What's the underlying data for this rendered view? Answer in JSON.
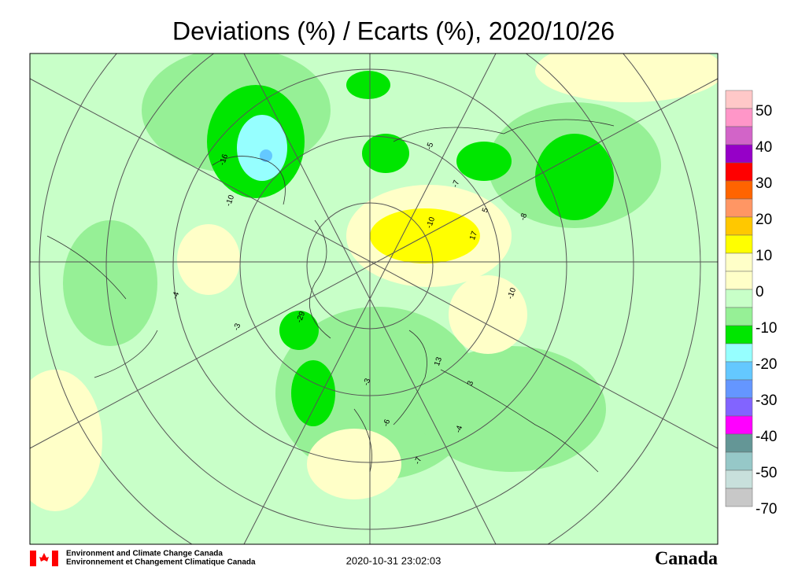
{
  "title": "Deviations (%) / Ecarts (%), 2020/10/26",
  "legend": {
    "colors": [
      "#ffc8c8",
      "#ff96c8",
      "#d264c8",
      "#9600c8",
      "#ff0000",
      "#ff6400",
      "#ff9664",
      "#ffc800",
      "#ffff00",
      "#ffffc8",
      "#ffffc8",
      "#c8ffc8",
      "#96f096",
      "#00e600",
      "#96ffff",
      "#64c8ff",
      "#6496ff",
      "#8264ff",
      "#ff00ff",
      "#649696",
      "#96c8c8",
      "#c8e0dc",
      "#c8c8c8"
    ],
    "labels": [
      50,
      40,
      30,
      20,
      10,
      0,
      -10,
      -20,
      -30,
      -40,
      -50,
      -70
    ]
  },
  "map_labels": [
    "-16",
    "-10",
    "17",
    "-10",
    "5",
    "-29",
    "-7",
    "-10",
    "-3",
    "-4",
    "3",
    "-5",
    "-8",
    "13",
    "-6",
    "-7",
    "-4",
    "-3"
  ],
  "footer": {
    "agency_en": "Environment and Climate Change Canada",
    "agency_fr": "Environnement et Changement Climatique Canada",
    "timestamp": "2020-10-31 23:02:03",
    "wordmark": "Canada"
  }
}
